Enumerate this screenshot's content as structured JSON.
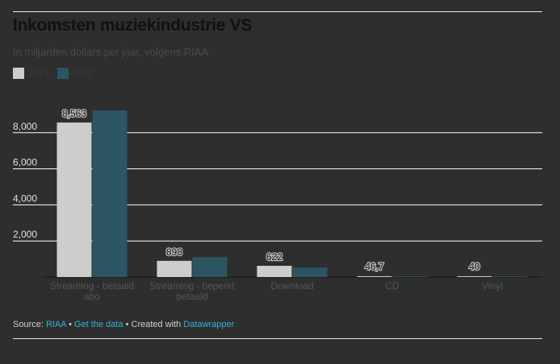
{
  "title": "Inkomsten muziekindustrie VS",
  "subtitle": "In miljarden dollars per jaar, volgens RIAA",
  "colors": {
    "y2021": "#cdcdcd",
    "y2022": "#2b5563",
    "grid": "#ffffff",
    "tick": "#e2e2e2",
    "cat": "#565656",
    "label": "#111111"
  },
  "legend": [
    {
      "label": "2021",
      "color": "#cdcdcd"
    },
    {
      "label": "2022",
      "color": "#2b5563"
    }
  ],
  "chart_data": {
    "type": "bar",
    "title": "Inkomsten muziekindustrie VS",
    "subtitle": "In miljarden dollars per jaar, volgens RIAA",
    "categories": [
      [
        "Streaming - betaald",
        "abo"
      ],
      [
        "Streaming - beperkt",
        "betaald"
      ],
      [
        "Download"
      ],
      [
        "CD"
      ],
      [
        "Vinyl"
      ]
    ],
    "series": [
      {
        "name": "2021",
        "values": [
          8563,
          898,
          622,
          46.7,
          40
        ],
        "labels": [
          "8,563",
          "898",
          "622",
          "46,7",
          "40"
        ]
      },
      {
        "name": "2022",
        "values": [
          9240,
          1100,
          520,
          35,
          30
        ]
      }
    ],
    "ylim": [
      0,
      10000
    ],
    "yticks": [
      2000,
      4000,
      6000,
      8000
    ],
    "ytick_labels": [
      "2,000",
      "4,000",
      "6,000",
      "8,000"
    ],
    "grid": true,
    "legend_position": "top-left"
  },
  "source": {
    "prefix": "Source: ",
    "name": "RIAA",
    "sep1": " • ",
    "get_data": "Get the data",
    "sep2": " • Created with ",
    "tool": "Datawrapper"
  }
}
